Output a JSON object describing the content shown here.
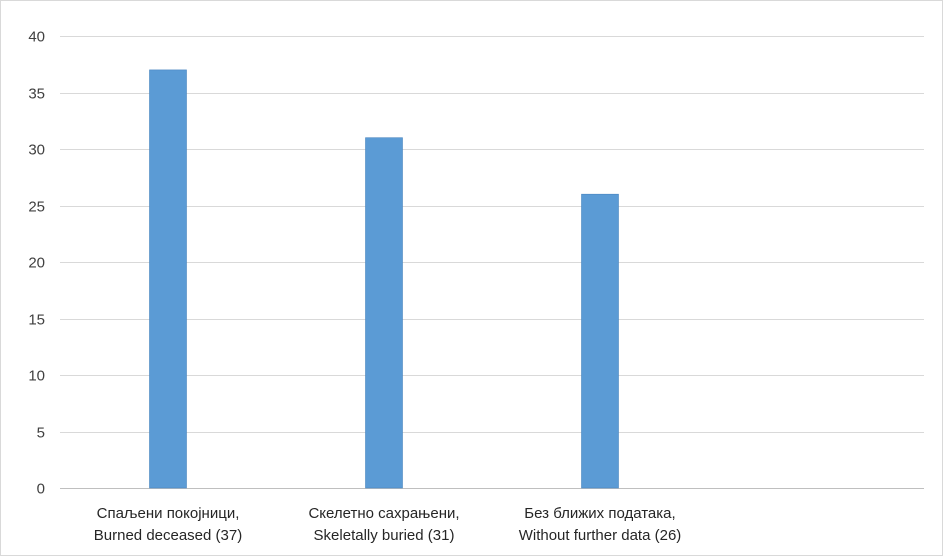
{
  "chart_data": {
    "type": "bar",
    "categories": [
      [
        "Спаљени покојници,",
        "Burned deceased (37)"
      ],
      [
        "Скелетно сахрањени,",
        "Skeletally buried (31)"
      ],
      [
        "Без ближих података,",
        "Without further data (26)"
      ]
    ],
    "values": [
      37,
      31,
      26
    ],
    "ylim": [
      0,
      40
    ],
    "yticks": [
      0,
      5,
      10,
      15,
      20,
      25,
      30,
      35,
      40
    ],
    "slots": 4,
    "grid": true,
    "legend": "none",
    "colors": {
      "bar": "#5b9bd5",
      "bar_edge": "#4a86c0",
      "grid": "#d9d9d9",
      "axis": "#bfbfbf"
    }
  }
}
